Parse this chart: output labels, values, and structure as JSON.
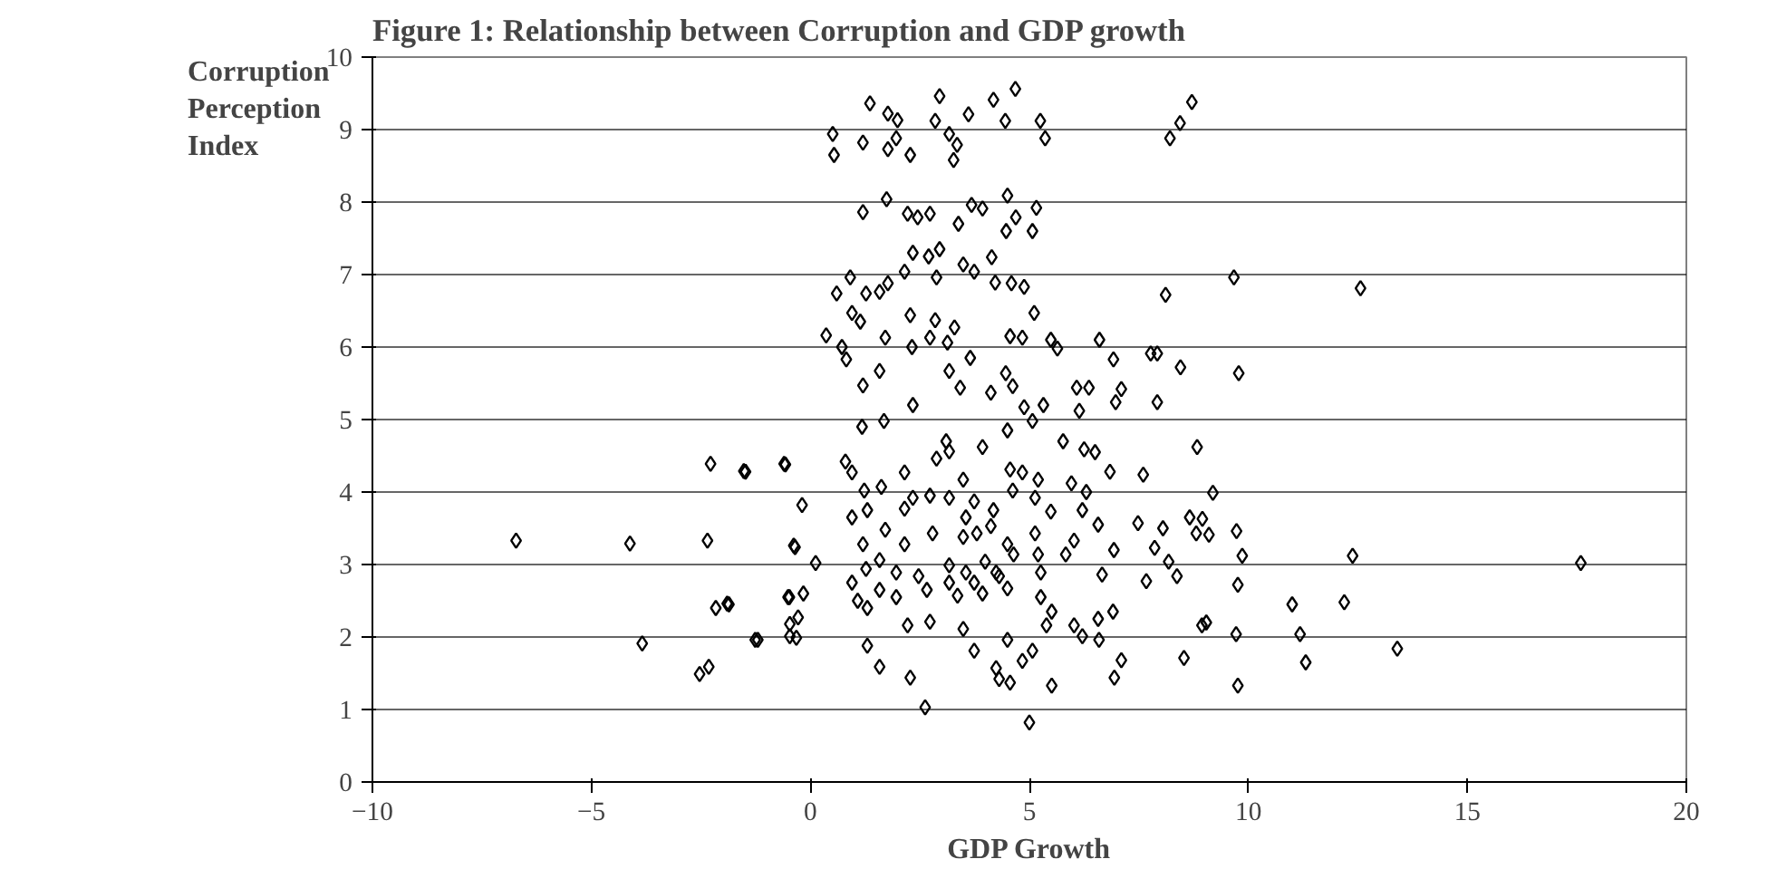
{
  "chart_data": {
    "type": "scatter",
    "title": "Figure 1: Relationship between Corruption and GDP growth",
    "xlabel": "GDP Growth",
    "ylabel": "Corruption Perception Index",
    "xlim": [
      -10,
      20
    ],
    "xticks": [
      -10,
      -5,
      0,
      5,
      10,
      15,
      20
    ],
    "ylim": [
      0,
      10
    ],
    "yticks": [
      0,
      1,
      2,
      3,
      4,
      5,
      6,
      7,
      8,
      9,
      10
    ],
    "grid": "y",
    "marker": "diamond",
    "series": [
      {
        "color": "#000000",
        "x": [
          1.2,
          1.74,
          2.22,
          2.45,
          2.73,
          3.38,
          3.68,
          3.93,
          4.5,
          4.47,
          4.69,
          5.07,
          5.16,
          2.95,
          2.34,
          2.7,
          2.88,
          3.49,
          3.74,
          4.14,
          4.22,
          4.59,
          4.88,
          8.11,
          0.6,
          0.91,
          1.27,
          1.58,
          1.77,
          2.15,
          0.95,
          1.14,
          2.28,
          2.85,
          3.29,
          5.11,
          0.36,
          0.72,
          0.82,
          1.71,
          2.32,
          2.73,
          3.13,
          3.65,
          4.56,
          4.84,
          5.49,
          5.64,
          6.6,
          6.92,
          7.77,
          7.92,
          8.45,
          1.2,
          1.58,
          2.34,
          3.17,
          3.42,
          4.12,
          4.46,
          4.62,
          4.88,
          5.32,
          6.08,
          6.14,
          6.36,
          6.97,
          7.1,
          7.92,
          1.18,
          1.68,
          3.1,
          3.93,
          4.5,
          5.07,
          5.77,
          6.25,
          6.5,
          8.83,
          0.8,
          0.95,
          -0.57,
          -1.48,
          1.23,
          1.62,
          2.15,
          2.88,
          3.17,
          3.49,
          4.56,
          4.84,
          5.2,
          5.96,
          6.84,
          7.6,
          6.3,
          2.34,
          2.73,
          3.17,
          3.74,
          4.18,
          4.62,
          5.13,
          5.49,
          0.95,
          1.3,
          2.15,
          3.55,
          6.21,
          9.19,
          -0.19,
          8.66,
          8.81,
          1.2,
          1.71,
          2.15,
          2.79,
          3.49,
          3.8,
          4.12,
          4.5,
          5.13,
          5.83,
          6.02,
          6.57,
          6.93,
          7.48,
          7.86,
          8.05,
          -0.35,
          0.12,
          0.95,
          1.27,
          1.58,
          1.96,
          2.47,
          3.17,
          3.55,
          3.99,
          4.24,
          4.64,
          5.2,
          5.26,
          6.66,
          7.67,
          8.18,
          8.37,
          1.08,
          1.3,
          1.58,
          1.96,
          2.66,
          3.17,
          3.36,
          3.74,
          3.93,
          4.5,
          4.31,
          5.26,
          5.51,
          6.02,
          6.21,
          6.57,
          6.91,
          7.1,
          6.94,
          8.53,
          8.94,
          5.51,
          5.0,
          2.62,
          2.28,
          1.58,
          1.3,
          2.22,
          2.73,
          3.49,
          3.74,
          4.24,
          4.31,
          4.5,
          4.56,
          4.84,
          5.07,
          5.39,
          6.59,
          -0.32,
          -0.51,
          -1.26,
          -1.9,
          -6.72,
          -4.12,
          -2.35,
          -2.28,
          -1.52,
          -0.6,
          -0.38,
          -0.48,
          -0.16,
          -2.16,
          -1.86,
          -3.84,
          -1.2,
          -0.47,
          -0.47,
          -0.28,
          -2.53,
          -2.32,
          0.51,
          0.54,
          1.36,
          1.2,
          1.77,
          1.99,
          1.77,
          2.28,
          1.96,
          2.95,
          2.85,
          3.17,
          3.27,
          3.35,
          3.61,
          4.18,
          4.68,
          4.45,
          5.25,
          5.36,
          8.21,
          8.44,
          8.71,
          9.67,
          12.56,
          9.78,
          8.95,
          9.1,
          9.73,
          9.86,
          12.38,
          17.59,
          9.76,
          11.0,
          12.19,
          9.04,
          9.72,
          11.18,
          11.31,
          13.4,
          9.76
        ],
        "values": [
          7.86,
          8.04,
          7.84,
          7.79,
          7.84,
          7.7,
          7.96,
          7.91,
          8.09,
          7.6,
          7.79,
          7.6,
          7.92,
          7.35,
          7.3,
          7.25,
          6.96,
          7.14,
          7.04,
          7.24,
          6.89,
          6.88,
          6.83,
          6.72,
          6.74,
          6.96,
          6.74,
          6.76,
          6.88,
          7.04,
          6.47,
          6.35,
          6.44,
          6.37,
          6.27,
          6.47,
          6.16,
          6.0,
          5.83,
          6.13,
          6.0,
          6.13,
          6.06,
          5.85,
          6.15,
          6.13,
          6.1,
          5.98,
          6.1,
          5.83,
          5.91,
          5.91,
          5.72,
          5.47,
          5.67,
          5.2,
          5.67,
          5.44,
          5.37,
          5.64,
          5.46,
          5.17,
          5.2,
          5.44,
          5.12,
          5.44,
          5.24,
          5.42,
          5.24,
          4.9,
          4.98,
          4.7,
          4.62,
          4.85,
          4.98,
          4.7,
          4.59,
          4.55,
          4.62,
          4.42,
          4.27,
          4.38,
          4.28,
          4.02,
          4.07,
          4.27,
          4.46,
          4.56,
          4.17,
          4.31,
          4.27,
          4.17,
          4.12,
          4.28,
          4.24,
          4.0,
          3.92,
          3.95,
          3.92,
          3.87,
          3.75,
          4.02,
          3.92,
          3.73,
          3.65,
          3.75,
          3.77,
          3.65,
          3.75,
          3.99,
          3.82,
          3.65,
          3.43,
          3.28,
          3.48,
          3.28,
          3.43,
          3.38,
          3.43,
          3.53,
          3.28,
          3.43,
          3.14,
          3.33,
          3.55,
          3.2,
          3.57,
          3.23,
          3.5,
          3.24,
          3.02,
          2.75,
          2.94,
          3.06,
          2.89,
          2.84,
          2.99,
          2.89,
          3.04,
          2.89,
          3.14,
          3.14,
          2.89,
          2.86,
          2.77,
          3.04,
          2.84,
          2.5,
          2.4,
          2.65,
          2.55,
          2.65,
          2.75,
          2.57,
          2.75,
          2.6,
          2.67,
          2.84,
          2.55,
          2.35,
          2.16,
          2.01,
          2.25,
          2.35,
          1.68,
          1.44,
          1.71,
          2.16,
          1.33,
          0.82,
          1.03,
          1.44,
          1.59,
          1.88,
          2.16,
          2.21,
          2.11,
          1.81,
          1.57,
          1.42,
          1.96,
          1.37,
          1.67,
          1.81,
          2.16,
          1.96,
          1.99,
          2.55,
          1.96,
          2.46,
          3.33,
          3.29,
          3.33,
          4.39,
          4.29,
          4.39,
          3.26,
          2.55,
          2.6,
          2.4,
          2.45,
          1.91,
          1.96,
          2.01,
          2.18,
          2.27,
          1.49,
          1.59,
          8.94,
          8.65,
          9.36,
          8.82,
          9.22,
          9.13,
          8.73,
          8.65,
          8.88,
          9.46,
          9.12,
          8.94,
          8.58,
          8.79,
          9.21,
          9.41,
          9.56,
          9.12,
          9.12,
          8.88,
          8.88,
          9.09,
          9.38,
          6.96,
          6.81,
          5.64,
          3.63,
          3.41,
          3.46,
          3.12,
          3.12,
          3.02,
          2.72,
          2.45,
          2.48,
          2.2,
          2.04,
          2.04,
          1.65,
          1.84,
          1.33
        ]
      }
    ]
  }
}
